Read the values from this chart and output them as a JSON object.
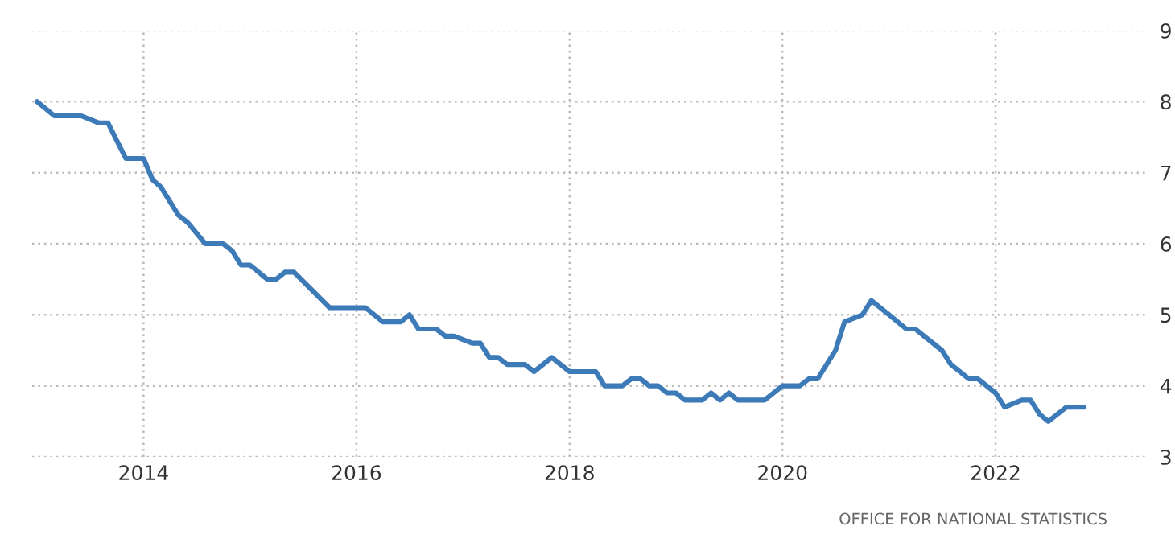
{
  "chart_data": {
    "type": "line",
    "x": [
      "2013-01",
      "2013-03",
      "2013-06",
      "2013-08",
      "2013-09",
      "2013-11",
      "2014-01",
      "2014-02",
      "2014-03",
      "2014-05",
      "2014-06",
      "2014-08",
      "2014-10",
      "2014-11",
      "2014-12",
      "2015-01",
      "2015-03",
      "2015-04",
      "2015-05",
      "2015-06",
      "2015-10",
      "2016-02",
      "2016-04",
      "2016-06",
      "2016-07",
      "2016-08",
      "2016-10",
      "2016-11",
      "2016-12",
      "2017-02",
      "2017-03",
      "2017-04",
      "2017-05",
      "2017-06",
      "2017-08",
      "2017-09",
      "2017-11",
      "2018-01",
      "2018-04",
      "2018-05",
      "2018-07",
      "2018-08",
      "2018-09",
      "2018-10",
      "2018-11",
      "2018-12",
      "2019-01",
      "2019-02",
      "2019-04",
      "2019-05",
      "2019-06",
      "2019-07",
      "2019-08",
      "2019-11",
      "2020-01",
      "2020-03",
      "2020-04",
      "2020-05",
      "2020-07",
      "2020-08",
      "2020-10",
      "2020-11",
      "2021-01",
      "2021-03",
      "2021-04",
      "2021-05",
      "2021-07",
      "2021-08",
      "2021-10",
      "2021-11",
      "2022-01",
      "2022-02",
      "2022-04",
      "2022-05",
      "2022-06",
      "2022-07",
      "2022-09",
      "2022-11"
    ],
    "series": [
      {
        "color": "#3d7ab8",
        "values": [
          8.0,
          7.8,
          7.8,
          7.7,
          7.7,
          7.2,
          7.2,
          6.9,
          6.8,
          6.4,
          6.3,
          6.0,
          6.0,
          5.9,
          5.7,
          5.7,
          5.5,
          5.5,
          5.6,
          5.6,
          5.1,
          5.1,
          4.9,
          4.9,
          5.0,
          4.8,
          4.8,
          4.7,
          4.7,
          4.6,
          4.6,
          4.4,
          4.4,
          4.3,
          4.3,
          4.2,
          4.4,
          4.2,
          4.2,
          4.0,
          4.0,
          4.1,
          4.1,
          4.0,
          4.0,
          3.9,
          3.9,
          3.8,
          3.8,
          3.9,
          3.8,
          3.9,
          3.8,
          3.8,
          4.0,
          4.0,
          4.1,
          4.1,
          4.5,
          4.9,
          5.0,
          5.2,
          5.0,
          4.8,
          4.8,
          4.7,
          4.5,
          4.3,
          4.1,
          4.1,
          3.9,
          3.7,
          3.8,
          3.8,
          3.6,
          3.5,
          3.7,
          3.7
        ]
      }
    ],
    "xlim": [
      "2012-12-15",
      "2023-06-01"
    ],
    "xticks": [
      {
        "value": "2014-01-01",
        "label": "2014"
      },
      {
        "value": "2016-01-01",
        "label": "2016"
      },
      {
        "value": "2018-01-01",
        "label": "2018"
      },
      {
        "value": "2020-01-01",
        "label": "2020"
      },
      {
        "value": "2022-01-01",
        "label": "2022"
      }
    ],
    "ylim": [
      3,
      9
    ],
    "yticks": [
      3,
      4,
      5,
      6,
      7,
      8,
      9
    ],
    "grid": true,
    "line_style": "solid",
    "marker": "none",
    "annotations": [
      "OFFICE FOR NATIONAL STATISTICS"
    ]
  }
}
